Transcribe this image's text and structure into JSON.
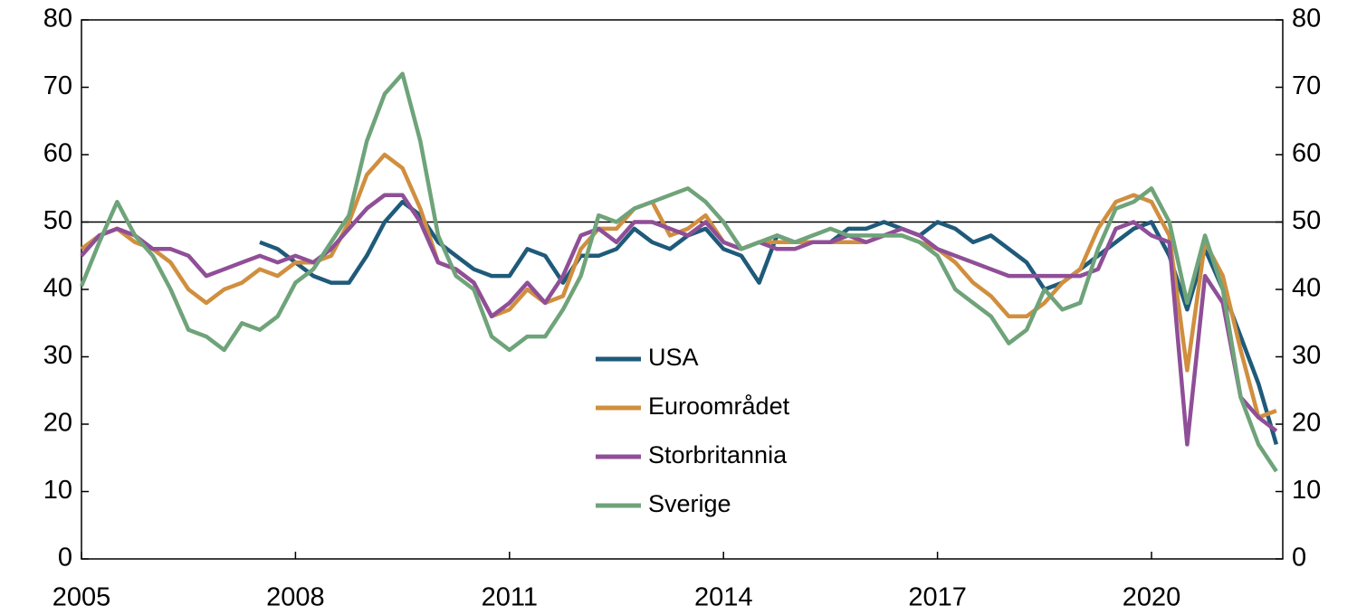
{
  "chart_data": {
    "type": "line",
    "x": [
      2005.0,
      2005.25,
      2005.5,
      2005.75,
      2006.0,
      2006.25,
      2006.5,
      2006.75,
      2007.0,
      2007.25,
      2007.5,
      2007.75,
      2008.0,
      2008.25,
      2008.5,
      2008.75,
      2009.0,
      2009.25,
      2009.5,
      2009.75,
      2010.0,
      2010.25,
      2010.5,
      2010.75,
      2011.0,
      2011.25,
      2011.5,
      2011.75,
      2012.0,
      2012.25,
      2012.5,
      2012.75,
      2013.0,
      2013.25,
      2013.5,
      2013.75,
      2014.0,
      2014.25,
      2014.5,
      2014.75,
      2015.0,
      2015.25,
      2015.5,
      2015.75,
      2016.0,
      2016.25,
      2016.5,
      2016.75,
      2017.0,
      2017.25,
      2017.5,
      2017.75,
      2018.0,
      2018.25,
      2018.5,
      2018.75,
      2019.0,
      2019.25,
      2019.5,
      2019.75,
      2020.0,
      2020.25,
      2020.5,
      2020.75,
      2021.0,
      2021.25,
      2021.5,
      2021.75
    ],
    "series": [
      {
        "name": "USA",
        "color": "#1f5a7a",
        "values": [
          null,
          null,
          null,
          null,
          null,
          null,
          null,
          null,
          null,
          null,
          47,
          46,
          44,
          42,
          41,
          41,
          45,
          50,
          53,
          51,
          47,
          45,
          43,
          42,
          42,
          46,
          45,
          41,
          45,
          45,
          46,
          49,
          47,
          46,
          48,
          49,
          46,
          45,
          41,
          48,
          47,
          47,
          47,
          49,
          49,
          50,
          49,
          48,
          50,
          49,
          47,
          48,
          46,
          44,
          40,
          41,
          43,
          45,
          47,
          49,
          50,
          45,
          37,
          46,
          40,
          33,
          26,
          17
        ]
      },
      {
        "name": "Euroområdet",
        "color": "#d08f3f",
        "values": [
          46,
          48,
          49,
          47,
          46,
          44,
          40,
          38,
          40,
          41,
          43,
          42,
          44,
          44,
          45,
          50,
          57,
          60,
          58,
          52,
          44,
          43,
          41,
          36,
          37,
          40,
          38,
          39,
          46,
          49,
          49,
          52,
          53,
          48,
          49,
          51,
          47,
          46,
          47,
          47,
          47,
          47,
          47,
          47,
          47,
          48,
          48,
          47,
          46,
          44,
          41,
          39,
          36,
          36,
          38,
          41,
          43,
          49,
          53,
          54,
          53,
          48,
          28,
          47,
          42,
          31,
          21,
          22
        ]
      },
      {
        "name": "Storbritannia",
        "color": "#8f4f97",
        "values": [
          45,
          48,
          49,
          48,
          46,
          46,
          45,
          42,
          43,
          44,
          45,
          44,
          45,
          44,
          46,
          49,
          52,
          54,
          54,
          50,
          44,
          43,
          41,
          36,
          38,
          41,
          38,
          42,
          48,
          49,
          47,
          50,
          50,
          49,
          48,
          50,
          47,
          46,
          47,
          46,
          46,
          47,
          47,
          48,
          47,
          48,
          49,
          48,
          46,
          45,
          44,
          43,
          42,
          42,
          42,
          42,
          42,
          43,
          49,
          50,
          48,
          47,
          17,
          42,
          38,
          24,
          21,
          19
        ]
      },
      {
        "name": "Sverige",
        "color": "#6fa37a",
        "values": [
          40.5,
          47,
          53,
          48,
          45,
          40,
          34,
          33,
          31,
          35,
          34,
          36,
          41,
          43,
          47,
          51,
          62,
          69,
          72,
          62,
          48,
          42,
          40,
          33,
          31,
          33,
          33,
          37,
          42,
          51,
          50,
          52,
          53,
          54,
          55,
          53,
          50,
          46,
          47,
          48,
          47,
          48,
          49,
          48,
          48,
          48,
          48,
          47,
          45,
          40,
          38,
          36,
          32,
          34,
          40,
          37,
          38,
          46,
          52,
          53,
          55,
          50,
          38,
          48,
          40,
          24,
          17,
          13
        ]
      }
    ],
    "xlim": [
      2005,
      2021.84
    ],
    "xticks": [
      2005,
      2008,
      2011,
      2014,
      2017,
      2020
    ],
    "ylim": [
      0,
      80
    ],
    "yticks": [
      0,
      10,
      20,
      30,
      40,
      50,
      60,
      70,
      80
    ],
    "y2lim": [
      0,
      80
    ],
    "y2ticks": [
      0,
      10,
      20,
      30,
      40,
      50,
      60,
      70,
      80
    ],
    "hline": 50
  }
}
